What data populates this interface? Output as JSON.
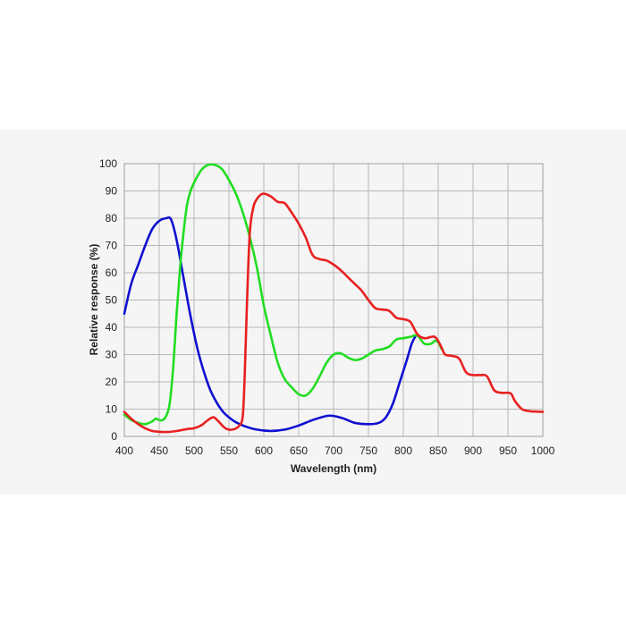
{
  "chart_data": {
    "type": "line",
    "title": "",
    "xlabel": "Wavelength (nm)",
    "ylabel": "Relative response (%)",
    "xlim": [
      400,
      1000
    ],
    "ylim": [
      0,
      100
    ],
    "xticks": [
      400,
      450,
      500,
      550,
      600,
      650,
      700,
      750,
      800,
      850,
      900,
      950,
      1000
    ],
    "yticks": [
      0,
      10,
      20,
      30,
      40,
      50,
      60,
      70,
      80,
      90,
      100
    ],
    "grid": true,
    "legend": "none",
    "series": [
      {
        "name": "Blue",
        "color": "#1010d0",
        "x": [
          400,
          410,
          420,
          430,
          440,
          450,
          460,
          467,
          475,
          485,
          495,
          505,
          515,
          525,
          540,
          555,
          570,
          590,
          610,
          630,
          650,
          670,
          690,
          700,
          715,
          730,
          750,
          765,
          775,
          785,
          795,
          805,
          812,
          818
        ],
        "y": [
          45,
          56,
          63,
          70,
          76,
          79,
          80,
          79.5,
          72,
          58,
          44,
          32,
          23,
          16,
          9.5,
          6,
          4,
          2.5,
          2,
          2.5,
          4,
          6,
          7.5,
          7.5,
          6.5,
          5,
          4.5,
          5,
          7,
          12,
          20,
          28,
          34,
          37
        ]
      },
      {
        "name": "Green",
        "color": "#22dd22",
        "x": [
          400,
          410,
          420,
          430,
          440,
          445,
          450,
          455,
          460,
          465,
          470,
          475,
          480,
          485,
          490,
          495,
          500,
          510,
          520,
          530,
          540,
          550,
          560,
          570,
          580,
          590,
          600,
          610,
          620,
          630,
          640,
          650,
          660,
          670,
          680,
          690,
          700,
          710,
          720,
          730,
          740,
          750,
          760,
          770,
          780,
          790,
          800,
          810,
          820,
          830,
          840,
          845,
          850,
          855
        ],
        "y": [
          8,
          6,
          5,
          4.5,
          5.5,
          6.5,
          6,
          6,
          7.5,
          12,
          25,
          45,
          62,
          75,
          85,
          90,
          93,
          97.5,
          99.5,
          99.5,
          98,
          94,
          89,
          82,
          73,
          62,
          48,
          37,
          27,
          21,
          18,
          15.5,
          15,
          17.5,
          22,
          27,
          30,
          30.5,
          29,
          28,
          28.5,
          30,
          31.5,
          32,
          33,
          35.5,
          36,
          36.5,
          37,
          34,
          34,
          35,
          34.5,
          32
        ]
      },
      {
        "name": "Red",
        "color": "#e82020",
        "x": [
          400,
          410,
          420,
          430,
          440,
          450,
          460,
          470,
          480,
          490,
          500,
          510,
          520,
          528,
          535,
          545,
          555,
          565,
          570,
          573,
          576,
          580,
          585,
          590,
          595,
          600,
          610,
          620,
          630,
          640,
          650,
          660,
          670,
          680,
          690,
          700,
          710,
          720,
          730,
          740,
          750,
          760,
          770,
          780,
          790,
          800,
          810,
          820,
          830,
          840,
          845,
          850,
          855,
          860,
          870,
          880,
          890,
          900,
          910,
          920,
          930,
          940,
          950,
          955,
          960,
          970,
          980,
          990,
          1000
        ],
        "y": [
          9,
          6.5,
          4.5,
          3,
          2,
          1.7,
          1.6,
          1.8,
          2.2,
          2.7,
          3,
          4,
          6,
          7,
          5.5,
          3,
          2.5,
          4,
          8,
          25,
          50,
          75,
          84,
          87,
          88.5,
          89,
          88,
          86,
          85.5,
          82,
          78,
          73,
          66.5,
          65,
          64.5,
          63,
          61,
          58.5,
          56,
          53.5,
          50,
          47,
          46.5,
          46,
          43.5,
          43,
          42,
          37.5,
          36,
          36.5,
          36.5,
          35,
          32.5,
          30,
          29.5,
          28.5,
          23.5,
          22.5,
          22.5,
          22,
          17,
          16,
          16,
          15.5,
          13,
          10,
          9.3,
          9.1,
          9
        ]
      }
    ]
  }
}
